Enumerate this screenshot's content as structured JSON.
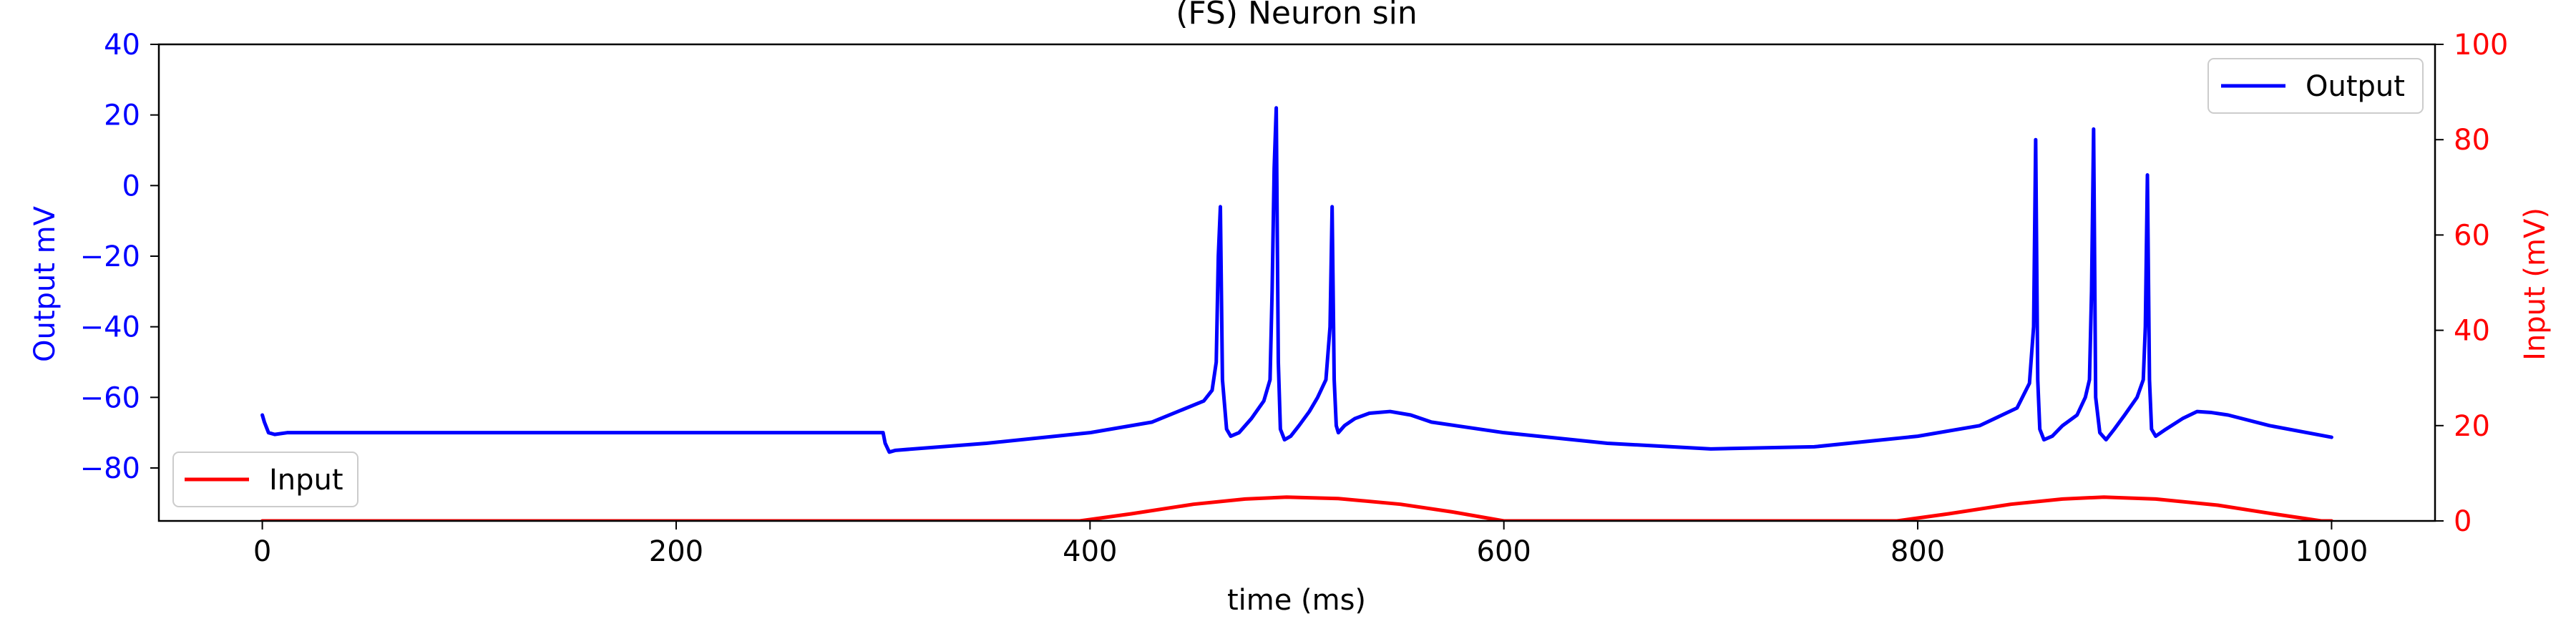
{
  "chart_data": {
    "type": "line",
    "title": "(FS) Neuron sin",
    "xlabel": "time (ms)",
    "ylabel_left": "Output mV",
    "ylabel_right": "Input (mV)",
    "xlim": [
      -50,
      1050
    ],
    "ylim_left": [
      -95,
      40
    ],
    "ylim_right": [
      0,
      100
    ],
    "xticks": [
      0,
      200,
      400,
      600,
      800,
      1000
    ],
    "yticks_left": [
      -80,
      -60,
      -40,
      -20,
      0,
      20,
      40
    ],
    "yticks_right": [
      0,
      20,
      40,
      60,
      80,
      100
    ],
    "grid": false,
    "colors": {
      "output": "#0000ff",
      "input": "#ff0000",
      "axis": "#000000"
    },
    "legends": [
      {
        "entry": "Output",
        "placement": "upper-right",
        "color": "#0000ff"
      },
      {
        "entry": "Input",
        "placement": "lower-left",
        "color": "#ff0000"
      }
    ],
    "series": [
      {
        "name": "Output",
        "axis": "left",
        "color": "#0000ff",
        "x": [
          0,
          1,
          3,
          6,
          12,
          30,
          100,
          200,
          299,
          300,
          301,
          303,
          306,
          350,
          400,
          430,
          455,
          459,
          461,
          462,
          463,
          464,
          466,
          468,
          472,
          478,
          484,
          487,
          488,
          489,
          490,
          491,
          492,
          494,
          497,
          501,
          506,
          510,
          514,
          516,
          517,
          518,
          519,
          520,
          523,
          528,
          535,
          545,
          555,
          565,
          600,
          650,
          700,
          750,
          800,
          830,
          848,
          854,
          856,
          857,
          858,
          859,
          861,
          865,
          870,
          877,
          881,
          883,
          884,
          885,
          886,
          888,
          891,
          895,
          900,
          906,
          909,
          910,
          911,
          912,
          913,
          915,
          920,
          928,
          935,
          942,
          950,
          970,
          1000
        ],
        "y": [
          -65,
          -67,
          -70,
          -70.5,
          -70,
          -70,
          -70,
          -70,
          -70,
          -70,
          -73,
          -75.5,
          -75,
          -73,
          -70,
          -67,
          -61,
          -58,
          -50,
          -20,
          -6,
          -55,
          -69,
          -71,
          -70,
          -66,
          -61,
          -55,
          -30,
          5,
          22,
          -50,
          -69,
          -72,
          -71,
          -68,
          -64,
          -60,
          -55,
          -40,
          -6,
          -55,
          -68,
          -70,
          -68,
          -66,
          -64.5,
          -64,
          -65,
          -67,
          -70,
          -73,
          -74.6,
          -74,
          -71,
          -68,
          -63,
          -56,
          -40,
          13,
          -55,
          -69,
          -72,
          -71,
          -68,
          -65,
          -60,
          -55,
          -30,
          16,
          -60,
          -70,
          -72,
          -69,
          -65,
          -60,
          -55,
          -40,
          3,
          -55,
          -69,
          -71,
          -69,
          -66,
          -64,
          -64.3,
          -65,
          -68,
          -71.3
        ]
      },
      {
        "name": "Input",
        "axis": "right",
        "color": "#ff0000",
        "x": [
          0,
          300,
          395,
          420,
          450,
          475,
          495,
          520,
          550,
          575,
          600,
          650,
          700,
          750,
          790,
          815,
          845,
          870,
          890,
          915,
          945,
          970,
          995,
          1000
        ],
        "y": [
          0,
          0,
          0,
          1.5,
          3.5,
          4.6,
          5,
          4.7,
          3.5,
          1.9,
          0,
          0,
          0,
          0,
          0,
          1.5,
          3.5,
          4.6,
          5,
          4.6,
          3.3,
          1.6,
          0,
          0
        ]
      }
    ]
  }
}
